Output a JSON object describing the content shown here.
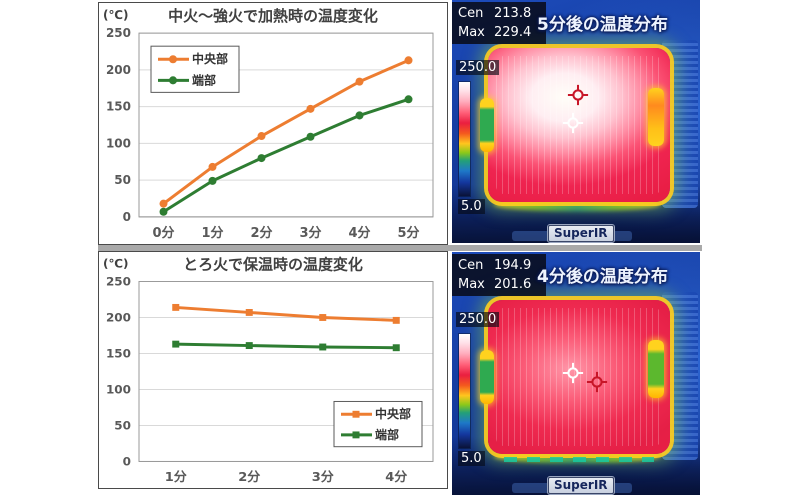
{
  "colors": {
    "center_series": "#ED7D31",
    "edge_series": "#2E7D32",
    "axis_text": "#595959",
    "title_text": "#404040"
  },
  "chart_data": [
    {
      "type": "line",
      "title": "中火〜強火で加熱時の温度変化",
      "unit_label": "(℃)",
      "categories": [
        "0分",
        "1分",
        "2分",
        "3分",
        "4分",
        "5分"
      ],
      "series": [
        {
          "name": "中央部",
          "color": "#ED7D31",
          "marker": "circle",
          "values": [
            18,
            68,
            110,
            147,
            184,
            213
          ]
        },
        {
          "name": "端部",
          "color": "#2E7D32",
          "marker": "circle",
          "values": [
            7,
            49,
            80,
            109,
            138,
            160
          ]
        }
      ],
      "ylim": [
        0,
        250
      ],
      "ytick_step": 50,
      "grid": true,
      "legend_position": "top-left"
    },
    {
      "type": "line",
      "title": "とろ火で保温時の温度変化",
      "unit_label": "(℃)",
      "categories": [
        "1分",
        "2分",
        "3分",
        "4分"
      ],
      "series": [
        {
          "name": "中央部",
          "color": "#ED7D31",
          "marker": "square",
          "values": [
            214,
            207,
            200,
            196
          ]
        },
        {
          "name": "端部",
          "color": "#2E7D32",
          "marker": "square",
          "values": [
            163,
            161,
            159,
            158
          ]
        }
      ],
      "ylim": [
        0,
        250
      ],
      "ytick_step": 50,
      "grid": true,
      "legend_position": "bottom-right"
    }
  ],
  "thermal_images": [
    {
      "title": "5分後の温度分布",
      "readings": [
        {
          "label": "Cen",
          "value": "213.8"
        },
        {
          "label": "Max",
          "value": "229.4"
        }
      ],
      "scale_max": "250.0",
      "scale_min": "5.0",
      "watermark": "SuperIR"
    },
    {
      "title": "4分後の温度分布",
      "readings": [
        {
          "label": "Cen",
          "value": "194.9"
        },
        {
          "label": "Max",
          "value": "201.6"
        }
      ],
      "scale_max": "250.0",
      "scale_min": "5.0",
      "watermark": "SuperIR"
    }
  ]
}
